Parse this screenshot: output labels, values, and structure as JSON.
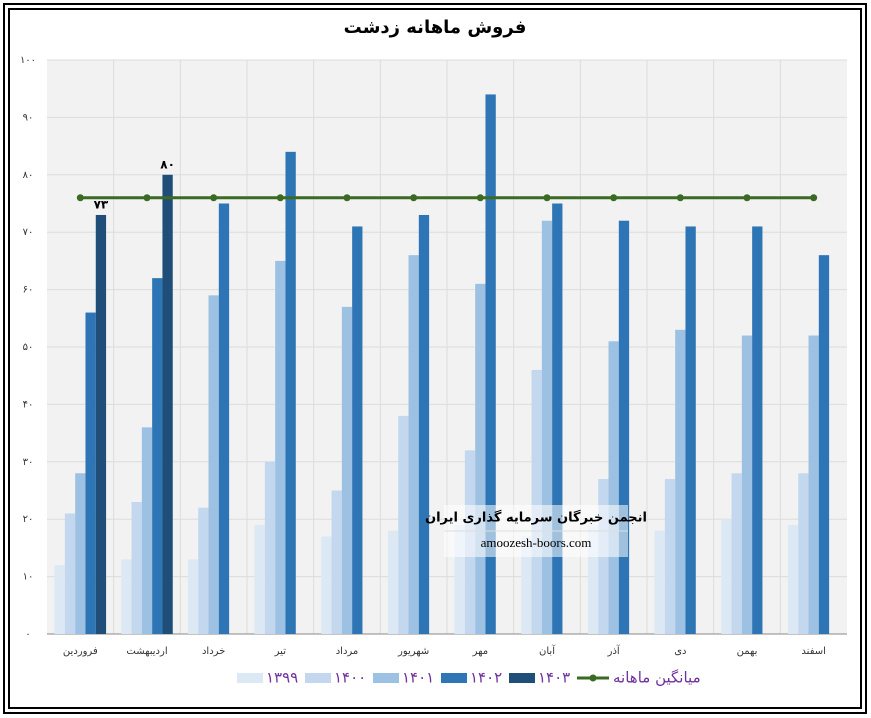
{
  "chart_data": {
    "type": "bar",
    "title": "فروش ماهانه زدشت",
    "categories": [
      "فروردین",
      "اردیبهشت",
      "خرداد",
      "تیر",
      "مرداد",
      "شهریور",
      "مهر",
      "آبان",
      "آذر",
      "دی",
      "بهمن",
      "اسفند"
    ],
    "series": [
      {
        "name": "۱۳۹۹",
        "color": "#dde8f5",
        "values": [
          12,
          13,
          13,
          19,
          17,
          18,
          19,
          17,
          19,
          18,
          20,
          19
        ]
      },
      {
        "name": "۱۴۰۰",
        "color": "#c3d8ee",
        "values": [
          21,
          23,
          22,
          30,
          25,
          38,
          32,
          46,
          27,
          27,
          28,
          28
        ]
      },
      {
        "name": "۱۴۰۱",
        "color": "#9dc1e3",
        "values": [
          28,
          36,
          59,
          65,
          57,
          66,
          61,
          72,
          51,
          53,
          52,
          52
        ]
      },
      {
        "name": "۱۴۰۲",
        "color": "#2e75b6",
        "values": [
          56,
          62,
          75,
          84,
          71,
          73,
          94,
          75,
          72,
          71,
          71,
          66
        ]
      },
      {
        "name": "۱۴۰۳",
        "color": "#1f4e79",
        "values": [
          73,
          80,
          null,
          null,
          null,
          null,
          null,
          null,
          null,
          null,
          null,
          null
        ],
        "value_labels": [
          "۷۳",
          "۸۰",
          null,
          null,
          null,
          null,
          null,
          null,
          null,
          null,
          null,
          null
        ]
      },
      {
        "name": "میانگین ماهانه",
        "type": "line",
        "color": "#3b6b22",
        "values": [
          76,
          76,
          76,
          76,
          76,
          76,
          76,
          76,
          76,
          76,
          76,
          76
        ]
      }
    ],
    "ylim": [
      0,
      100
    ],
    "yticks": [
      {
        "value": 0,
        "label": "۰"
      },
      {
        "value": 10,
        "label": "۱۰"
      },
      {
        "value": 20,
        "label": "۲۰"
      },
      {
        "value": 30,
        "label": "۳۰"
      },
      {
        "value": 40,
        "label": "۴۰"
      },
      {
        "value": 50,
        "label": "۵۰"
      },
      {
        "value": 60,
        "label": "۶۰"
      },
      {
        "value": 70,
        "label": "۷۰"
      },
      {
        "value": 80,
        "label": "۸۰"
      },
      {
        "value": 90,
        "label": "۹۰"
      },
      {
        "value": 100,
        "label": "۱۰۰"
      }
    ],
    "grid": true,
    "annotations": [
      "انجمن خبرگان سرمایه گذاری ایران",
      "amoozesh-boors.com"
    ]
  }
}
